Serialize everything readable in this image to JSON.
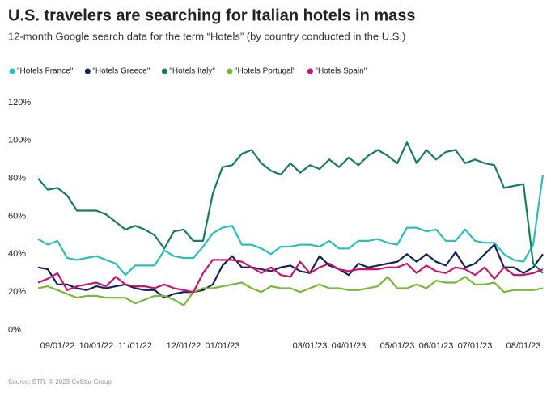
{
  "chart_data": {
    "type": "line",
    "title": "U.S. travelers are searching for Italian hotels in mass",
    "subtitle": "12-month Google search data for the term “Hotels” (by country conducted in the U.S.)",
    "source": "Source: STR. © 2023 CoStar Group",
    "categories": [
      null,
      null,
      "09/01/22",
      null,
      null,
      null,
      "10/01/22",
      null,
      null,
      null,
      "11/01/22",
      null,
      null,
      null,
      null,
      "12/01/22",
      null,
      null,
      null,
      "01/01/23",
      null,
      null,
      null,
      null,
      null,
      null,
      null,
      null,
      "03/01/23",
      null,
      null,
      null,
      "04/01/23",
      null,
      null,
      null,
      null,
      "05/01/23",
      null,
      null,
      null,
      "06/01/23",
      null,
      null,
      null,
      "07/01/23",
      null,
      null,
      null,
      null,
      "08/01/23",
      null,
      null
    ],
    "series": [
      {
        "name": "\"Hotels France\"",
        "color": "#2bbfb8",
        "values": [
          48,
          45,
          47,
          38,
          37,
          38,
          39,
          37,
          35,
          29,
          34,
          34,
          34,
          42,
          39,
          38,
          38,
          44,
          51,
          54,
          55,
          45,
          45,
          43,
          40,
          44,
          44,
          45,
          45,
          44,
          47,
          43,
          43,
          47,
          47,
          48,
          46,
          45,
          54,
          54,
          52,
          53,
          47,
          47,
          53,
          47,
          46,
          46,
          40,
          37,
          36,
          45,
          82
        ]
      },
      {
        "name": "\"Hotels Greece\"",
        "color": "#14245a",
        "values": [
          33,
          32,
          24,
          24,
          22,
          21,
          23,
          22,
          23,
          24,
          22,
          21,
          21,
          17,
          19,
          20,
          20,
          21,
          24,
          34,
          39,
          33,
          33,
          32,
          31,
          33,
          34,
          31,
          30,
          39,
          34,
          32,
          29,
          35,
          33,
          34,
          35,
          36,
          40,
          36,
          40,
          36,
          34,
          41,
          33,
          35,
          40,
          45,
          33,
          33,
          30,
          33,
          40
        ]
      },
      {
        "name": "\"Hotels Italy\"",
        "color": "#1a7a64",
        "values": [
          80,
          74,
          75,
          71,
          63,
          63,
          63,
          61,
          57,
          53,
          55,
          53,
          50,
          43,
          52,
          53,
          47,
          47,
          72,
          86,
          87,
          93,
          95,
          88,
          84,
          82,
          88,
          83,
          87,
          85,
          90,
          86,
          91,
          87,
          92,
          95,
          92,
          88,
          99,
          88,
          95,
          90,
          94,
          95,
          88,
          90,
          88,
          87,
          75,
          76,
          77,
          35,
          30
        ]
      },
      {
        "name": "\"Hotels Portugal\"",
        "color": "#7ab83a",
        "values": [
          22,
          23,
          21,
          19,
          17,
          18,
          18,
          17,
          17,
          17,
          14,
          16,
          18,
          18,
          16,
          13,
          20,
          22,
          22,
          23,
          24,
          25,
          22,
          20,
          23,
          22,
          22,
          20,
          22,
          24,
          22,
          22,
          21,
          21,
          22,
          23,
          28,
          22,
          22,
          24,
          22,
          26,
          25,
          25,
          28,
          24,
          24,
          25,
          20,
          21,
          21,
          21,
          22
        ]
      },
      {
        "name": "\"Hotels Spain\"",
        "color": "#c8166e",
        "values": [
          25,
          27,
          30,
          21,
          23,
          24,
          25,
          23,
          28,
          24,
          23,
          23,
          22,
          24,
          22,
          21,
          20,
          30,
          37,
          37,
          37,
          36,
          33,
          30,
          33,
          29,
          28,
          36,
          30,
          33,
          35,
          32,
          31,
          32,
          32,
          32,
          33,
          33,
          35,
          30,
          34,
          31,
          30,
          33,
          32,
          29,
          33,
          27,
          33,
          29,
          29,
          30,
          32
        ]
      }
    ],
    "ylim": [
      0,
      120
    ],
    "yticks": [
      {
        "value": 0,
        "label": "0%"
      },
      {
        "value": 20,
        "label": "20%"
      },
      {
        "value": 40,
        "label": "40%"
      },
      {
        "value": 60,
        "label": "60%"
      },
      {
        "value": 80,
        "label": "80%"
      },
      {
        "value": 100,
        "label": "100%"
      },
      {
        "value": 120,
        "label": "120%"
      }
    ],
    "grid": true
  }
}
